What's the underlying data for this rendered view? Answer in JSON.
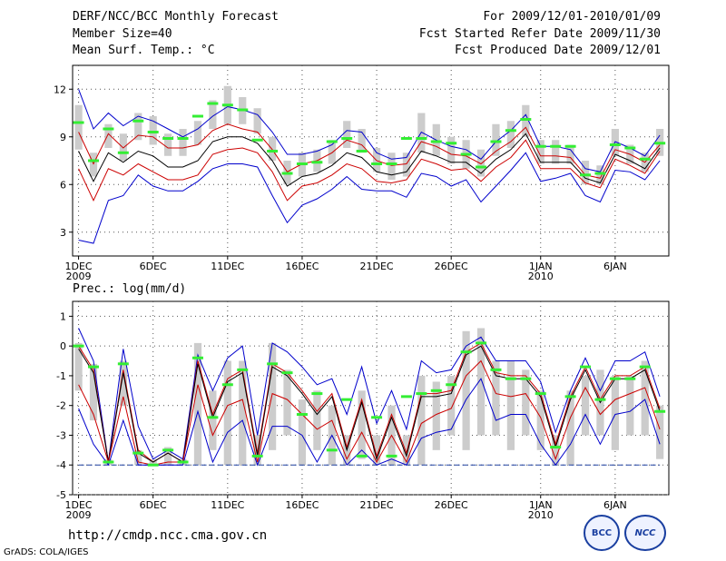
{
  "header": {
    "title": "DERF/NCC/BCC Monthly Forecast",
    "member_size": "Member Size=40",
    "variable": "Mean Surf. Temp.: °C",
    "period": "For 2009/12/01-2010/01/09",
    "started": "Fcst Started Refer Date 2009/11/30",
    "produced": "Fcst Produced Date 2009/12/01"
  },
  "prec_label": "Prec.: log(mm/d)",
  "footer": {
    "url": "http://cmdp.ncc.cma.gov.cn",
    "grads": "GrADS: COLA/IGES",
    "logo_bcc": "BCC",
    "logo_ncc": "NCC"
  },
  "colors": {
    "max_min": "#0000cc",
    "percentile": "#cc0000",
    "mean": "#000000",
    "box": "#cccccc",
    "median_marker": "#33ee33",
    "threshold": "#1a3fa0"
  },
  "chart_data": [
    {
      "type": "line",
      "title": "Mean Surf. Temp.: °C",
      "x_tick_labels": [
        "1DEC",
        "6DEC",
        "11DEC",
        "16DEC",
        "21DEC",
        "26DEC",
        "1JAN",
        "6JAN"
      ],
      "x_tick_days": [
        1,
        6,
        11,
        16,
        21,
        26,
        32,
        37
      ],
      "year_labels": [
        {
          "day": 1,
          "text": "2009"
        },
        {
          "day": 32,
          "text": "2010"
        }
      ],
      "ylim": [
        1.5,
        13.5
      ],
      "yticks": [
        3,
        6,
        9,
        12
      ],
      "x": [
        1,
        2,
        3,
        4,
        5,
        6,
        7,
        8,
        9,
        10,
        11,
        12,
        13,
        14,
        15,
        16,
        17,
        18,
        19,
        20,
        21,
        22,
        23,
        24,
        25,
        26,
        27,
        28,
        29,
        30,
        31,
        32,
        33,
        34,
        35,
        36,
        37,
        38,
        39,
        40
      ],
      "box_low": [
        8.2,
        6.5,
        8.3,
        7.5,
        8.8,
        8.5,
        7.8,
        7.8,
        8.5,
        9.5,
        9.8,
        9.8,
        9.2,
        7.5,
        6.0,
        6.5,
        6.8,
        7.3,
        8.3,
        8.0,
        6.8,
        6.3,
        6.5,
        8.0,
        7.8,
        7.3,
        7.0,
        6.5,
        7.8,
        8.3,
        9.0,
        7.3,
        7.3,
        7.3,
        6.0,
        6.0,
        7.8,
        7.3,
        6.8,
        7.8
      ],
      "box_high": [
        11.0,
        8.0,
        9.8,
        9.2,
        10.5,
        10.3,
        9.2,
        9.5,
        10.0,
        11.3,
        12.2,
        11.5,
        10.8,
        9.0,
        7.5,
        8.0,
        8.2,
        8.8,
        10.0,
        9.5,
        8.3,
        8.0,
        8.0,
        10.5,
        9.8,
        9.0,
        8.8,
        8.2,
        9.8,
        10.0,
        11.0,
        8.8,
        8.8,
        8.5,
        7.5,
        7.2,
        9.5,
        8.5,
        8.0,
        9.5
      ],
      "series": [
        {
          "name": "max",
          "role": "max_min",
          "values": [
            12.0,
            9.5,
            10.5,
            9.7,
            10.3,
            10.0,
            9.5,
            9.0,
            9.5,
            10.3,
            10.9,
            10.7,
            10.4,
            9.3,
            7.9,
            7.9,
            8.1,
            8.5,
            9.4,
            9.3,
            8.0,
            7.6,
            7.7,
            9.3,
            8.8,
            8.4,
            8.2,
            7.6,
            8.7,
            9.4,
            10.4,
            8.4,
            8.4,
            8.2,
            7.0,
            6.8,
            8.7,
            8.3,
            7.8,
            9.1
          ]
        },
        {
          "name": "p90",
          "role": "percentile",
          "values": [
            9.3,
            7.3,
            9.2,
            8.3,
            9.1,
            9.0,
            8.3,
            8.3,
            8.5,
            9.4,
            9.8,
            9.5,
            9.3,
            8.2,
            6.8,
            7.3,
            7.5,
            8.0,
            8.8,
            8.5,
            7.5,
            7.2,
            7.3,
            8.7,
            8.4,
            7.9,
            7.8,
            7.3,
            8.1,
            8.7,
            9.6,
            7.8,
            7.8,
            7.7,
            6.6,
            6.4,
            8.2,
            7.9,
            7.4,
            8.5
          ]
        },
        {
          "name": "mean",
          "role": "mean",
          "values": [
            8.1,
            6.2,
            8.0,
            7.4,
            8.1,
            7.8,
            7.1,
            7.1,
            7.5,
            8.7,
            9.0,
            9.0,
            8.6,
            7.5,
            5.9,
            6.5,
            6.7,
            7.2,
            8.0,
            7.7,
            6.8,
            6.6,
            6.8,
            8.1,
            7.8,
            7.4,
            7.4,
            6.7,
            7.6,
            8.2,
            9.2,
            7.4,
            7.4,
            7.4,
            6.4,
            6.1,
            7.9,
            7.5,
            7.0,
            8.3
          ]
        },
        {
          "name": "p10",
          "role": "percentile",
          "values": [
            7.0,
            5.0,
            7.0,
            6.6,
            7.3,
            6.8,
            6.3,
            6.3,
            6.6,
            7.9,
            8.2,
            8.3,
            8.0,
            6.8,
            5.0,
            5.9,
            6.1,
            6.6,
            7.3,
            7.0,
            6.2,
            6.1,
            6.3,
            7.6,
            7.3,
            6.9,
            7.0,
            6.2,
            7.1,
            7.7,
            8.8,
            7.0,
            7.0,
            7.0,
            6.1,
            5.8,
            7.6,
            7.2,
            6.7,
            8.1
          ]
        },
        {
          "name": "min",
          "role": "max_min",
          "values": [
            2.5,
            2.3,
            5.0,
            5.3,
            6.6,
            5.9,
            5.6,
            5.6,
            6.2,
            7.0,
            7.3,
            7.3,
            7.1,
            5.3,
            3.6,
            4.7,
            5.1,
            5.7,
            6.5,
            5.7,
            5.6,
            5.6,
            5.2,
            6.7,
            6.5,
            5.9,
            6.3,
            4.9,
            5.9,
            6.9,
            8.0,
            6.2,
            6.4,
            6.7,
            5.3,
            4.9,
            6.9,
            6.8,
            6.3,
            7.5
          ]
        }
      ],
      "median_markers": [
        9.9,
        7.5,
        9.5,
        8.0,
        10.0,
        9.3,
        8.9,
        8.9,
        10.3,
        11.1,
        11.0,
        10.7,
        8.8,
        8.1,
        6.7,
        7.3,
        7.4,
        8.7,
        8.9,
        8.1,
        7.3,
        7.3,
        8.9,
        8.9,
        8.7,
        8.6,
        7.9,
        7.1,
        8.7,
        9.4,
        10.1,
        8.4,
        8.4,
        8.4,
        6.6,
        6.7,
        8.5,
        8.3,
        7.6,
        8.6
      ]
    },
    {
      "type": "line",
      "title": "Prec.: log(mm/d)",
      "x_tick_labels": [
        "1DEC",
        "6DEC",
        "11DEC",
        "16DEC",
        "21DEC",
        "26DEC",
        "1JAN",
        "6JAN"
      ],
      "x_tick_days": [
        1,
        6,
        11,
        16,
        21,
        26,
        32,
        37
      ],
      "year_labels": [
        {
          "day": 1,
          "text": "2009"
        },
        {
          "day": 32,
          "text": "2010"
        }
      ],
      "ylim": [
        -5,
        1.5
      ],
      "yticks": [
        -5,
        -4,
        -3,
        -2,
        -1,
        0,
        1
      ],
      "threshold": -4,
      "x": [
        1,
        2,
        3,
        4,
        5,
        6,
        7,
        8,
        9,
        10,
        11,
        12,
        13,
        14,
        15,
        16,
        17,
        18,
        19,
        20,
        21,
        22,
        23,
        24,
        25,
        26,
        27,
        28,
        29,
        30,
        31,
        32,
        33,
        34,
        35,
        36,
        37,
        38,
        39,
        40
      ],
      "box_low": [
        -1.5,
        -2.5,
        -4.0,
        -2.0,
        -4.0,
        -4.0,
        -4.0,
        -4.0,
        -4.0,
        -3.5,
        -4.0,
        -4.0,
        -4.0,
        -3.5,
        -3.0,
        -4.0,
        -3.5,
        -4.0,
        -4.0,
        -3.8,
        -4.0,
        -4.0,
        -4.0,
        -4.0,
        -3.5,
        -3.0,
        -3.5,
        -3.0,
        -3.0,
        -3.5,
        -3.0,
        -3.5,
        -4.0,
        -4.0,
        -3.0,
        -3.0,
        -3.5,
        -3.0,
        -3.0,
        -3.8
      ],
      "box_high": [
        0.1,
        -0.6,
        -3.8,
        -0.5,
        -3.5,
        -3.8,
        -3.4,
        -3.8,
        0.1,
        -1.5,
        -0.5,
        -0.5,
        -3.0,
        0.1,
        -0.8,
        -1.8,
        -1.5,
        -2.0,
        -3.0,
        -1.5,
        -3.0,
        -2.0,
        -3.0,
        -1.0,
        -1.2,
        -1.0,
        0.5,
        0.6,
        -0.5,
        -0.5,
        -0.8,
        -1.5,
        -3.0,
        -1.5,
        -1.0,
        -0.8,
        -1.0,
        -1.0,
        -0.5,
        -2.0
      ],
      "series": [
        {
          "name": "max",
          "role": "max_min",
          "values": [
            0.6,
            -0.5,
            -3.9,
            -0.1,
            -2.7,
            -3.8,
            -3.5,
            -3.8,
            -0.3,
            -1.5,
            -0.4,
            0.0,
            -3.0,
            0.1,
            -0.2,
            -0.7,
            -1.3,
            -1.1,
            -2.3,
            -0.7,
            -2.6,
            -1.5,
            -2.8,
            -0.5,
            -0.9,
            -0.8,
            0.0,
            0.3,
            -0.5,
            -0.5,
            -0.5,
            -1.2,
            -2.9,
            -1.5,
            -0.4,
            -1.5,
            -0.5,
            -0.5,
            -0.2,
            -1.7
          ]
        },
        {
          "name": "p90",
          "role": "percentile",
          "values": [
            0.0,
            -0.8,
            -3.9,
            -0.8,
            -3.5,
            -3.9,
            -3.6,
            -3.9,
            -0.5,
            -2.3,
            -1.1,
            -0.8,
            -3.6,
            -0.6,
            -0.9,
            -1.5,
            -2.2,
            -1.6,
            -3.4,
            -1.8,
            -3.7,
            -2.3,
            -3.6,
            -1.6,
            -1.6,
            -1.5,
            -0.2,
            0.1,
            -0.9,
            -1.0,
            -1.0,
            -1.6,
            -3.3,
            -1.7,
            -0.7,
            -1.8,
            -1.0,
            -1.0,
            -0.7,
            -2.1
          ]
        },
        {
          "name": "mean",
          "role": "mean",
          "values": [
            -0.1,
            -0.9,
            -3.9,
            -0.9,
            -3.6,
            -3.9,
            -3.6,
            -3.9,
            -0.6,
            -2.4,
            -1.2,
            -0.9,
            -3.7,
            -0.7,
            -1.0,
            -1.6,
            -2.3,
            -1.7,
            -3.5,
            -1.9,
            -3.8,
            -2.4,
            -3.7,
            -1.7,
            -1.7,
            -1.6,
            -0.3,
            0.0,
            -1.0,
            -1.1,
            -1.1,
            -1.7,
            -3.4,
            -1.8,
            -0.8,
            -1.9,
            -1.1,
            -1.1,
            -0.8,
            -2.2
          ]
        },
        {
          "name": "p10",
          "role": "percentile",
          "values": [
            -1.3,
            -2.3,
            -3.9,
            -1.7,
            -3.9,
            -4.0,
            -3.9,
            -3.9,
            -1.3,
            -3.0,
            -2.0,
            -1.8,
            -3.9,
            -1.6,
            -1.8,
            -2.3,
            -2.8,
            -2.5,
            -3.8,
            -2.9,
            -3.9,
            -3.0,
            -3.9,
            -2.6,
            -2.3,
            -2.1,
            -1.0,
            -0.5,
            -1.6,
            -1.7,
            -1.6,
            -2.4,
            -3.8,
            -2.4,
            -1.4,
            -2.3,
            -1.8,
            -1.6,
            -1.4,
            -2.8
          ]
        },
        {
          "name": "min",
          "role": "max_min",
          "values": [
            -2.1,
            -3.3,
            -4.0,
            -2.5,
            -4.0,
            -4.0,
            -4.0,
            -4.0,
            -2.2,
            -3.9,
            -2.9,
            -2.5,
            -4.0,
            -2.7,
            -2.7,
            -3.0,
            -3.9,
            -3.0,
            -4.0,
            -3.5,
            -4.0,
            -3.8,
            -4.0,
            -3.1,
            -2.9,
            -2.8,
            -1.8,
            -1.1,
            -2.5,
            -2.3,
            -2.3,
            -3.3,
            -4.0,
            -3.3,
            -2.3,
            -3.3,
            -2.3,
            -2.2,
            -1.8,
            -3.3
          ]
        }
      ],
      "median_markers": [
        0.0,
        -0.7,
        -3.9,
        -0.6,
        -3.6,
        -4.0,
        -3.5,
        -3.9,
        -0.4,
        -2.4,
        -1.3,
        -0.8,
        -3.7,
        -0.6,
        -0.9,
        -2.3,
        -1.6,
        -3.5,
        -1.8,
        -3.7,
        -2.4,
        -3.7,
        -1.7,
        -1.6,
        -1.5,
        -1.3,
        -0.2,
        0.1,
        -0.8,
        -1.1,
        -1.1,
        -1.6,
        -3.4,
        -1.7,
        -0.7,
        -1.8,
        -1.1,
        -1.1,
        -0.7,
        -2.2
      ]
    }
  ]
}
